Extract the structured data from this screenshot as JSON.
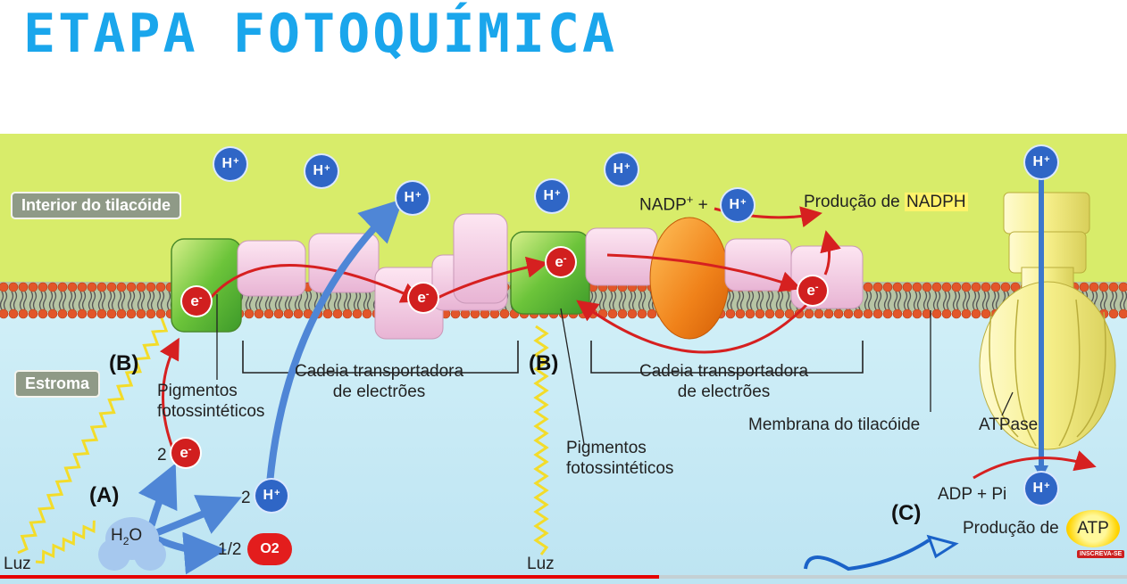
{
  "title": "ETAPA FOTOQUÍMICA",
  "regions": {
    "interior": "Interior do tilacóide",
    "stroma": "Estroma"
  },
  "labels": {
    "pigments_1": "Pigmentos\nfotossintéticos",
    "pigments_2": "Pigmentos\nfotossintéticos",
    "chain_1": "Cadeia transportadora\nde electrões",
    "chain_2": "Cadeia transportadora\nde electrões",
    "membrane": "Membrana do tilacóide",
    "atpase": "ATPase",
    "nadp": "NADP",
    "nadp_plus": "+",
    "nadph_prefix": "Produção de ",
    "nadph": "NADPH",
    "adp": "ADP + Pi",
    "atp_prefix": "Produção de ",
    "atp": "ATP",
    "water": "H2O",
    "light_1": "Luz",
    "light_2": "Luz",
    "coef_2e": "2",
    "coef_2h": "2",
    "coef_half": "1/2",
    "plus": "+"
  },
  "letters": {
    "a": "(A)",
    "b1": "(B)",
    "b2": "(B)",
    "c": "(C)"
  },
  "ions": {
    "h": "H",
    "h_charge": "+",
    "e": "e",
    "e_charge": "-",
    "o2": "O2"
  },
  "video": {
    "progress": 0.585,
    "subscribe": "INSCREVA-SE"
  },
  "colors": {
    "title": "#1aa6ec",
    "thylakoid_interior": "#d8ec6a",
    "stroma": "#c9ecf6",
    "electron": "#d11f1f",
    "proton": "#2f66c6",
    "atpase": "#f6f096"
  }
}
